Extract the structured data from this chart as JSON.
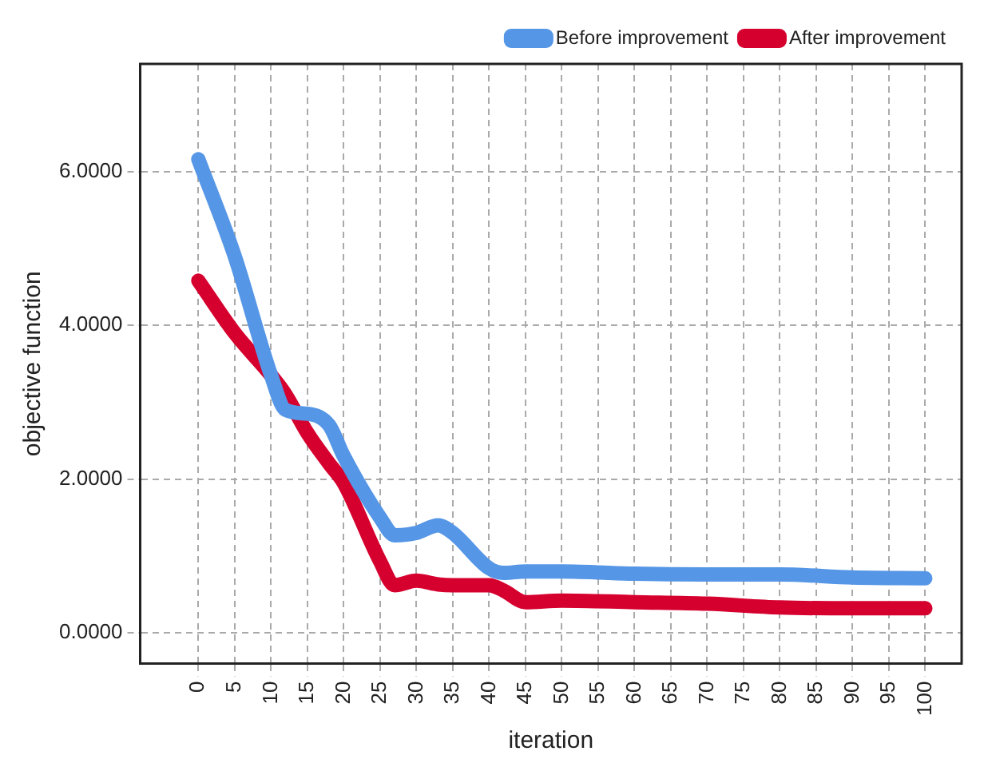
{
  "chart_data": {
    "type": "line",
    "xlabel": "iteration",
    "ylabel": "objective function",
    "xlim": [
      -8,
      105
    ],
    "ylim": [
      -0.4,
      7.4
    ],
    "xticks": [
      0,
      5,
      10,
      15,
      20,
      25,
      30,
      35,
      40,
      45,
      50,
      55,
      60,
      65,
      70,
      75,
      80,
      85,
      90,
      95,
      100
    ],
    "yticks": [
      {
        "value": 0,
        "label": "0.0000"
      },
      {
        "value": 2,
        "label": "2.0000"
      },
      {
        "value": 4,
        "label": "4.0000"
      },
      {
        "value": 6,
        "label": "6.0000"
      }
    ],
    "grid": true,
    "legend": "top right",
    "marker": "none",
    "line_style": "solid",
    "x": [
      0,
      5,
      10,
      12,
      15,
      18,
      20,
      25,
      27,
      30,
      33,
      35,
      40,
      42,
      45,
      50,
      60,
      70,
      80,
      90,
      100
    ],
    "series": [
      {
        "name": "Before improvement",
        "color": "#5596e6",
        "values": [
          6.16,
          4.9,
          3.35,
          2.9,
          2.85,
          2.7,
          2.3,
          1.5,
          1.27,
          1.3,
          1.4,
          1.3,
          0.84,
          0.78,
          0.8,
          0.8,
          0.77,
          0.76,
          0.76,
          0.72,
          0.71
        ]
      },
      {
        "name": "After improvement",
        "color": "#d6002f",
        "values": [
          4.58,
          3.9,
          3.35,
          3.1,
          2.6,
          2.2,
          1.95,
          0.93,
          0.62,
          0.68,
          0.63,
          0.62,
          0.62,
          0.55,
          0.4,
          0.42,
          0.4,
          0.38,
          0.33,
          0.32,
          0.32
        ]
      }
    ]
  }
}
